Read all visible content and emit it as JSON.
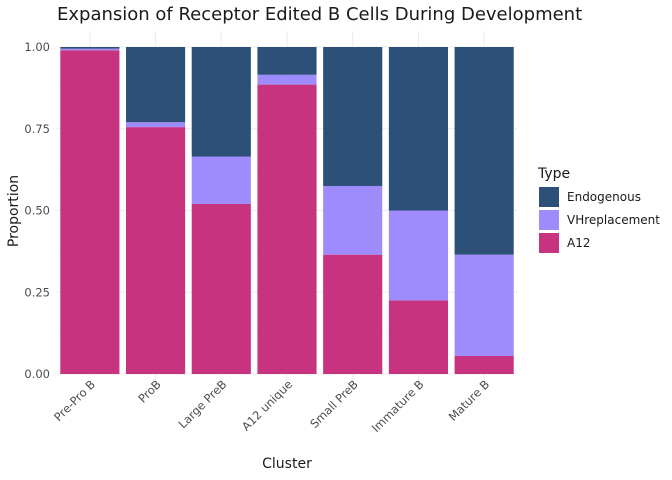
{
  "chart_data": {
    "type": "bar",
    "stacked": true,
    "title": "Expansion of Receptor Edited B Cells During Development",
    "xlabel": "Cluster",
    "ylabel": "Proportion",
    "ylim": [
      0,
      1
    ],
    "yticks": [
      "0.00",
      "0.25",
      "0.50",
      "0.75",
      "1.00"
    ],
    "grid": true,
    "legend_position": "right",
    "legend_title": "Type",
    "categories": [
      "Pre-Pro B",
      "ProB",
      "Large PreB",
      "A12 unique",
      "Small PreB",
      "Immature B",
      "Mature B"
    ],
    "series": [
      {
        "name": "Endogenous",
        "color": "#2d5078",
        "values": [
          0.005,
          0.23,
          0.335,
          0.085,
          0.425,
          0.5,
          0.635
        ]
      },
      {
        "name": "VHreplacement",
        "color": "#9e8cfc",
        "values": [
          0.005,
          0.015,
          0.145,
          0.03,
          0.21,
          0.275,
          0.31
        ]
      },
      {
        "name": "A12",
        "color": "#c7337f",
        "values": [
          0.99,
          0.755,
          0.52,
          0.885,
          0.365,
          0.225,
          0.055
        ]
      }
    ],
    "stack_order_bottom_to_top": [
      "A12",
      "VHreplacement",
      "Endogenous"
    ]
  }
}
